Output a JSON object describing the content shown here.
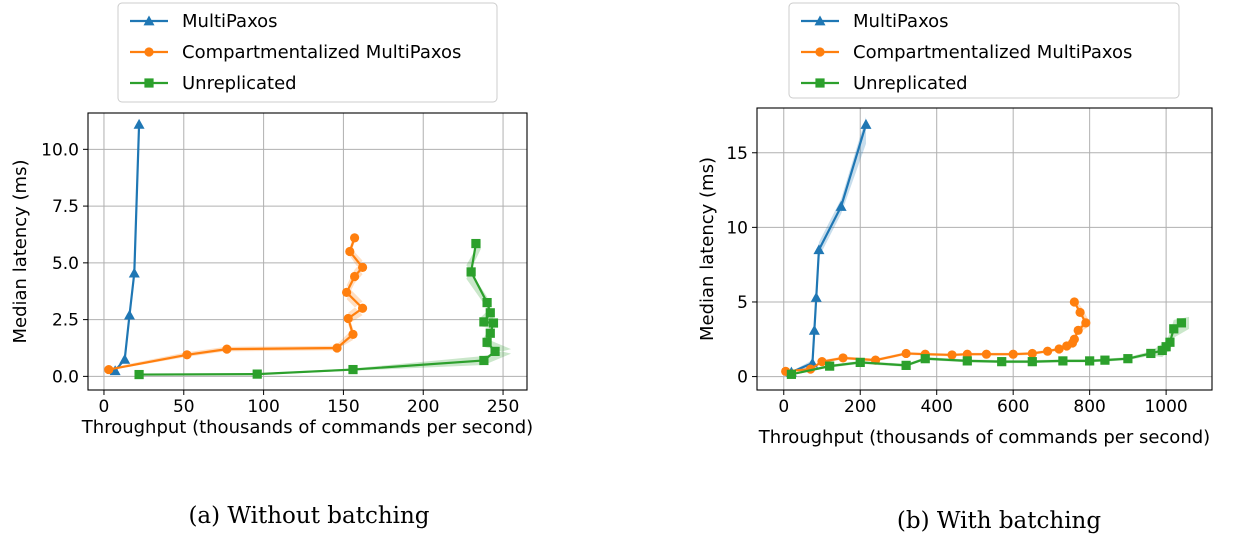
{
  "chart_data": [
    {
      "type": "line",
      "caption": "(a) Without batching",
      "xlabel": "Throughput (thousands of commands per second)",
      "ylabel": "Median latency (ms)",
      "xlim": [
        -10,
        265
      ],
      "ylim": [
        -0.6,
        11.6
      ],
      "xticks": [
        0,
        50,
        100,
        150,
        200,
        250
      ],
      "yticks": [
        0.0,
        2.5,
        5.0,
        7.5,
        10.0
      ],
      "ytick_labels": [
        "0.0",
        "2.5",
        "5.0",
        "7.5",
        "10.0"
      ],
      "grid": true,
      "legend_position": "above",
      "series": [
        {
          "name": "MultiPaxos",
          "color": "#1f77b4",
          "marker": "triangle",
          "points": [
            [
              7,
              0.25
            ],
            [
              13,
              0.75
            ],
            [
              16,
              2.7
            ],
            [
              19,
              4.55
            ],
            [
              22,
              11.1
            ]
          ]
        },
        {
          "name": "Compartmentalized MultiPaxos",
          "color": "#ff7f0e",
          "marker": "circle",
          "points": [
            [
              3,
              0.3
            ],
            [
              52,
              0.95
            ],
            [
              77,
              1.2
            ],
            [
              146,
              1.25
            ],
            [
              156,
              1.85
            ],
            [
              153,
              2.55
            ],
            [
              162,
              3.0
            ],
            [
              152,
              3.7
            ],
            [
              157,
              4.4
            ],
            [
              162,
              4.8
            ],
            [
              154,
              5.5
            ],
            [
              157,
              6.1
            ]
          ],
          "band": [
            [
              2,
              0.25,
              0.35
            ],
            [
              51,
              0.85,
              1.05
            ],
            [
              76,
              1.1,
              1.3
            ],
            [
              145,
              1.15,
              1.35
            ],
            [
              156,
              1.6,
              2.1
            ],
            [
              153,
              2.3,
              2.8
            ],
            [
              162,
              2.7,
              3.3
            ],
            [
              152,
              3.4,
              4.0
            ],
            [
              157,
              4.1,
              4.7
            ],
            [
              162,
              4.5,
              5.1
            ],
            [
              154,
              5.3,
              5.7
            ],
            [
              157,
              5.9,
              6.3
            ]
          ]
        },
        {
          "name": "Unreplicated",
          "color": "#2ca02c",
          "marker": "square",
          "points": [
            [
              22,
              0.08
            ],
            [
              96,
              0.1
            ],
            [
              156,
              0.3
            ],
            [
              238,
              0.7
            ],
            [
              245,
              1.1
            ],
            [
              240,
              1.5
            ],
            [
              242,
              1.9
            ],
            [
              244,
              2.35
            ],
            [
              238,
              2.4
            ],
            [
              242,
              2.8
            ],
            [
              240,
              3.25
            ],
            [
              230,
              4.6
            ],
            [
              233,
              5.85
            ]
          ],
          "band": [
            [
              22,
              0.05,
              0.11
            ],
            [
              96,
              0.07,
              0.13
            ],
            [
              156,
              0.25,
              0.35
            ],
            [
              238,
              0.5,
              0.9
            ],
            [
              255,
              1.0,
              1.2
            ],
            [
              238,
              1.3,
              1.7
            ],
            [
              242,
              1.6,
              2.2
            ],
            [
              244,
              2.1,
              2.6
            ],
            [
              236,
              2.2,
              2.6
            ],
            [
              242,
              2.6,
              3.0
            ],
            [
              240,
              3.0,
              3.5
            ],
            [
              227,
              4.3,
              4.9
            ],
            [
              236,
              5.6,
              6.0
            ]
          ]
        }
      ]
    },
    {
      "type": "line",
      "caption": "(b) With batching",
      "xlabel": "Throughput (thousands of commands per second)",
      "ylabel": "Median latency (ms)",
      "xlim": [
        -70,
        1120
      ],
      "ylim": [
        -0.9,
        18
      ],
      "xticks": [
        0,
        200,
        400,
        600,
        800,
        1000
      ],
      "yticks": [
        0,
        5,
        10,
        15
      ],
      "ytick_labels": [
        "0",
        "5",
        "10",
        "15"
      ],
      "grid": true,
      "legend_position": "above",
      "series": [
        {
          "name": "MultiPaxos",
          "color": "#1f77b4",
          "marker": "triangle",
          "points": [
            [
              20,
              0.3
            ],
            [
              75,
              0.9
            ],
            [
              80,
              3.1
            ],
            [
              85,
              5.3
            ],
            [
              92,
              8.5
            ],
            [
              150,
              11.4
            ],
            [
              215,
              16.9
            ]
          ],
          "band": [
            [
              20,
              0.25,
              0.35
            ],
            [
              75,
              0.7,
              1.1
            ],
            [
              80,
              2.8,
              3.4
            ],
            [
              85,
              5.0,
              5.6
            ],
            [
              92,
              8.0,
              9.0
            ],
            [
              150,
              10.9,
              11.9
            ],
            [
              215,
              15.6,
              17.4
            ]
          ]
        },
        {
          "name": "Compartmentalized MultiPaxos",
          "color": "#ff7f0e",
          "marker": "circle",
          "points": [
            [
              5,
              0.35
            ],
            [
              70,
              0.5
            ],
            [
              100,
              1.0
            ],
            [
              155,
              1.25
            ],
            [
              240,
              1.1
            ],
            [
              320,
              1.55
            ],
            [
              370,
              1.5
            ],
            [
              440,
              1.45
            ],
            [
              480,
              1.5
            ],
            [
              530,
              1.5
            ],
            [
              600,
              1.5
            ],
            [
              650,
              1.55
            ],
            [
              690,
              1.7
            ],
            [
              720,
              1.85
            ],
            [
              740,
              2.05
            ],
            [
              755,
              2.25
            ],
            [
              760,
              2.5
            ],
            [
              770,
              3.1
            ],
            [
              790,
              3.6
            ],
            [
              775,
              4.3
            ],
            [
              760,
              5.0
            ]
          ],
          "band": [
            [
              5,
              0.3,
              0.4
            ],
            [
              70,
              0.4,
              0.6
            ],
            [
              100,
              0.9,
              1.1
            ],
            [
              155,
              1.15,
              1.35
            ],
            [
              240,
              1.0,
              1.2
            ],
            [
              320,
              1.45,
              1.65
            ],
            [
              370,
              1.4,
              1.6
            ],
            [
              440,
              1.35,
              1.55
            ],
            [
              480,
              1.4,
              1.6
            ],
            [
              530,
              1.4,
              1.6
            ],
            [
              600,
              1.4,
              1.6
            ],
            [
              650,
              1.45,
              1.65
            ],
            [
              690,
              1.6,
              1.8
            ],
            [
              720,
              1.75,
              1.95
            ],
            [
              740,
              1.95,
              2.15
            ],
            [
              755,
              2.1,
              2.4
            ],
            [
              760,
              2.3,
              2.7
            ],
            [
              770,
              2.9,
              3.3
            ],
            [
              795,
              3.3,
              3.9
            ],
            [
              780,
              4.0,
              4.6
            ],
            [
              762,
              4.8,
              5.2
            ]
          ]
        },
        {
          "name": "Unreplicated",
          "color": "#2ca02c",
          "marker": "square",
          "points": [
            [
              20,
              0.15
            ],
            [
              120,
              0.7
            ],
            [
              200,
              0.95
            ],
            [
              320,
              0.75
            ],
            [
              370,
              1.2
            ],
            [
              480,
              1.05
            ],
            [
              570,
              1.0
            ],
            [
              650,
              1.0
            ],
            [
              730,
              1.05
            ],
            [
              800,
              1.05
            ],
            [
              840,
              1.1
            ],
            [
              900,
              1.2
            ],
            [
              960,
              1.55
            ],
            [
              990,
              1.75
            ],
            [
              1000,
              2.0
            ],
            [
              1010,
              2.3
            ],
            [
              1020,
              3.2
            ],
            [
              1040,
              3.6
            ]
          ],
          "band": [
            [
              20,
              0.1,
              0.2
            ],
            [
              120,
              0.6,
              0.8
            ],
            [
              200,
              0.85,
              1.05
            ],
            [
              320,
              0.65,
              0.85
            ],
            [
              370,
              1.1,
              1.3
            ],
            [
              480,
              0.95,
              1.15
            ],
            [
              570,
              0.9,
              1.1
            ],
            [
              650,
              0.9,
              1.1
            ],
            [
              730,
              0.95,
              1.15
            ],
            [
              800,
              0.95,
              1.15
            ],
            [
              840,
              1.0,
              1.2
            ],
            [
              900,
              1.1,
              1.3
            ],
            [
              960,
              1.4,
              1.7
            ],
            [
              990,
              1.3,
              2.2
            ],
            [
              1000,
              1.6,
              2.4
            ],
            [
              1010,
              1.7,
              2.9
            ],
            [
              1020,
              2.6,
              3.8
            ],
            [
              1060,
              3.2,
              4.0
            ]
          ]
        }
      ]
    }
  ]
}
